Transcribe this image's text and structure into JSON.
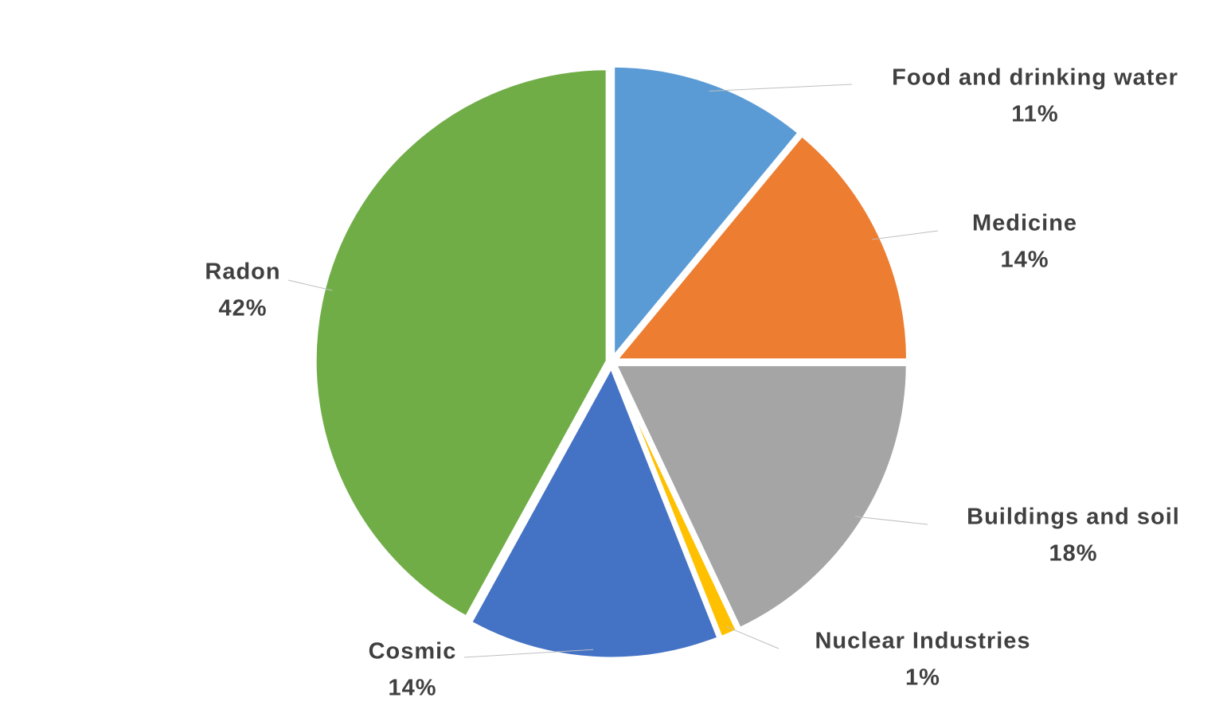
{
  "chart_data": {
    "type": "pie",
    "categories": [
      "Food and drinking water",
      "Medicine",
      "Buildings and soil",
      "Nuclear Industries",
      "Cosmic",
      "Radon"
    ],
    "values": [
      11,
      14,
      18,
      1,
      14,
      42
    ],
    "value_labels": [
      "11%",
      "14%",
      "18%",
      "1%",
      "14%",
      "42%"
    ],
    "colors": [
      "#5b9bd5",
      "#ed7d31",
      "#a5a5a5",
      "#ffc000",
      "#4472c4",
      "#70ad47"
    ]
  }
}
